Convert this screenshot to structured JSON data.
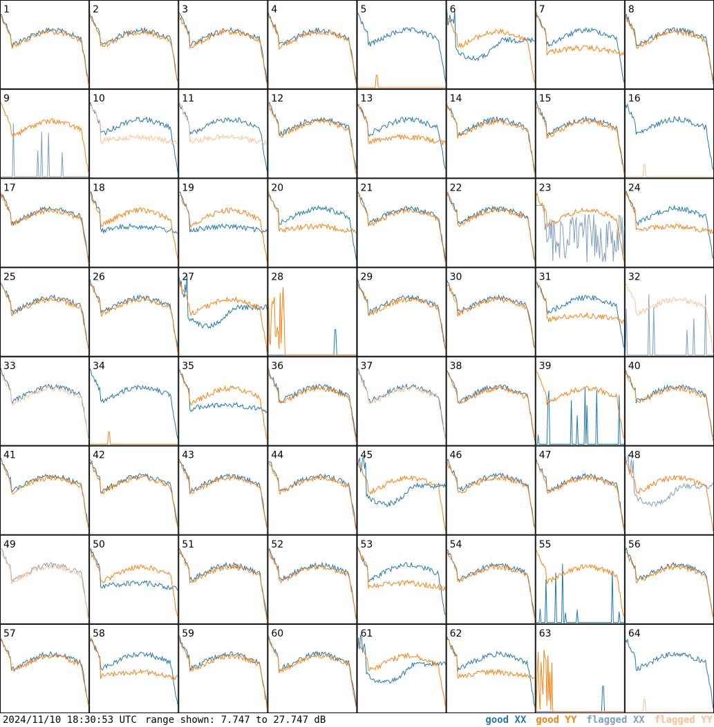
{
  "chart_data": {
    "type": "line",
    "title": "",
    "panel_count": 64,
    "grid_columns": 8,
    "grid_rows": 8,
    "panel_labels": [
      "1",
      "2",
      "3",
      "4",
      "5",
      "6",
      "7",
      "8",
      "9",
      "10",
      "11",
      "12",
      "13",
      "14",
      "15",
      "16",
      "17",
      "18",
      "19",
      "20",
      "21",
      "22",
      "23",
      "24",
      "25",
      "26",
      "27",
      "28",
      "29",
      "30",
      "31",
      "32",
      "33",
      "34",
      "35",
      "36",
      "37",
      "38",
      "39",
      "40",
      "41",
      "42",
      "43",
      "44",
      "45",
      "46",
      "47",
      "48",
      "49",
      "50",
      "51",
      "52",
      "53",
      "54",
      "55",
      "56",
      "57",
      "58",
      "59",
      "60",
      "61",
      "62",
      "63",
      "64"
    ],
    "ylim": [
      7.747,
      27.747
    ],
    "y_units": "dB",
    "series": [
      {
        "name": "good XX",
        "color": "#1f77b4"
      },
      {
        "name": "good YY",
        "color": "#ff7f0e"
      },
      {
        "name": "flagged XX",
        "color": "#7f9fbf"
      },
      {
        "name": "flagged YY",
        "color": "#ffbf8f"
      }
    ],
    "panels": [
      {
        "id": "1",
        "xx": "good",
        "yy": "good",
        "shape": "normal"
      },
      {
        "id": "2",
        "xx": "good",
        "yy": "good",
        "shape": "normal"
      },
      {
        "id": "3",
        "xx": "good",
        "yy": "good",
        "shape": "normal"
      },
      {
        "id": "4",
        "xx": "good",
        "yy": "good",
        "shape": "normal"
      },
      {
        "id": "5",
        "xx": "good",
        "yy": "good",
        "shape": "yy_dead"
      },
      {
        "id": "6",
        "xx": "good",
        "yy": "good",
        "shape": "xx_dip"
      },
      {
        "id": "7",
        "xx": "good",
        "yy": "good",
        "shape": "yy_low"
      },
      {
        "id": "8",
        "xx": "good",
        "yy": "good",
        "shape": "normal"
      },
      {
        "id": "9",
        "xx": "flagged",
        "yy": "good",
        "shape": "xx_dead"
      },
      {
        "id": "10",
        "xx": "good",
        "yy": "flagged",
        "shape": "yy_low"
      },
      {
        "id": "11",
        "xx": "good",
        "yy": "flagged",
        "shape": "yy_low"
      },
      {
        "id": "12",
        "xx": "good",
        "yy": "good",
        "shape": "normal"
      },
      {
        "id": "13",
        "xx": "good",
        "yy": "good",
        "shape": "yy_low"
      },
      {
        "id": "14",
        "xx": "good",
        "yy": "good",
        "shape": "normal"
      },
      {
        "id": "15",
        "xx": "good",
        "yy": "good",
        "shape": "normal"
      },
      {
        "id": "16",
        "xx": "good",
        "yy": "flagged",
        "shape": "yy_dead"
      },
      {
        "id": "17",
        "xx": "good",
        "yy": "good",
        "shape": "normal"
      },
      {
        "id": "18",
        "xx": "good",
        "yy": "good",
        "shape": "xx_low"
      },
      {
        "id": "19",
        "xx": "good",
        "yy": "good",
        "shape": "xx_low"
      },
      {
        "id": "20",
        "xx": "good",
        "yy": "good",
        "shape": "yy_low"
      },
      {
        "id": "21",
        "xx": "good",
        "yy": "good",
        "shape": "normal"
      },
      {
        "id": "22",
        "xx": "good",
        "yy": "good",
        "shape": "normal"
      },
      {
        "id": "23",
        "xx": "flagged",
        "yy": "good",
        "shape": "xx_noise"
      },
      {
        "id": "24",
        "xx": "good",
        "yy": "good",
        "shape": "yy_low"
      },
      {
        "id": "25",
        "xx": "good",
        "yy": "good",
        "shape": "normal"
      },
      {
        "id": "26",
        "xx": "good",
        "yy": "good",
        "shape": "normal"
      },
      {
        "id": "27",
        "xx": "good",
        "yy": "good",
        "shape": "xx_dip"
      },
      {
        "id": "28",
        "xx": "good",
        "yy": "good",
        "shape": "both_dead"
      },
      {
        "id": "29",
        "xx": "good",
        "yy": "good",
        "shape": "normal"
      },
      {
        "id": "30",
        "xx": "good",
        "yy": "good",
        "shape": "normal"
      },
      {
        "id": "31",
        "xx": "good",
        "yy": "good",
        "shape": "yy_low"
      },
      {
        "id": "32",
        "xx": "flagged",
        "yy": "flagged",
        "shape": "xx_dead"
      },
      {
        "id": "33",
        "xx": "good",
        "yy": "flagged",
        "shape": "normal"
      },
      {
        "id": "34",
        "xx": "good",
        "yy": "good",
        "shape": "yy_dead"
      },
      {
        "id": "35",
        "xx": "good",
        "yy": "good",
        "shape": "xx_low"
      },
      {
        "id": "36",
        "xx": "good",
        "yy": "good",
        "shape": "normal"
      },
      {
        "id": "37",
        "xx": "good",
        "yy": "flagged",
        "shape": "normal"
      },
      {
        "id": "38",
        "xx": "good",
        "yy": "good",
        "shape": "normal"
      },
      {
        "id": "39",
        "xx": "good",
        "yy": "good",
        "shape": "xx_dead"
      },
      {
        "id": "40",
        "xx": "good",
        "yy": "good",
        "shape": "normal"
      },
      {
        "id": "41",
        "xx": "good",
        "yy": "good",
        "shape": "normal"
      },
      {
        "id": "42",
        "xx": "good",
        "yy": "good",
        "shape": "normal"
      },
      {
        "id": "43",
        "xx": "good",
        "yy": "good",
        "shape": "normal"
      },
      {
        "id": "44",
        "xx": "good",
        "yy": "good",
        "shape": "normal"
      },
      {
        "id": "45",
        "xx": "good",
        "yy": "good",
        "shape": "xx_dip"
      },
      {
        "id": "46",
        "xx": "good",
        "yy": "good",
        "shape": "normal"
      },
      {
        "id": "47",
        "xx": "good",
        "yy": "good",
        "shape": "normal"
      },
      {
        "id": "48",
        "xx": "flagged",
        "yy": "good",
        "shape": "xx_dip"
      },
      {
        "id": "49",
        "xx": "flagged",
        "yy": "flagged",
        "shape": "normal"
      },
      {
        "id": "50",
        "xx": "good",
        "yy": "good",
        "shape": "xx_low"
      },
      {
        "id": "51",
        "xx": "good",
        "yy": "good",
        "shape": "normal"
      },
      {
        "id": "52",
        "xx": "good",
        "yy": "good",
        "shape": "normal"
      },
      {
        "id": "53",
        "xx": "good",
        "yy": "good",
        "shape": "yy_low"
      },
      {
        "id": "54",
        "xx": "good",
        "yy": "good",
        "shape": "normal"
      },
      {
        "id": "55",
        "xx": "good",
        "yy": "good",
        "shape": "xx_dead"
      },
      {
        "id": "56",
        "xx": "good",
        "yy": "good",
        "shape": "normal"
      },
      {
        "id": "57",
        "xx": "good",
        "yy": "good",
        "shape": "normal"
      },
      {
        "id": "58",
        "xx": "good",
        "yy": "good",
        "shape": "yy_low"
      },
      {
        "id": "59",
        "xx": "good",
        "yy": "good",
        "shape": "normal"
      },
      {
        "id": "60",
        "xx": "good",
        "yy": "good",
        "shape": "normal"
      },
      {
        "id": "61",
        "xx": "good",
        "yy": "good",
        "shape": "xx_dip"
      },
      {
        "id": "62",
        "xx": "good",
        "yy": "good",
        "shape": "yy_low"
      },
      {
        "id": "63",
        "xx": "good",
        "yy": "good",
        "shape": "both_dead"
      },
      {
        "id": "64",
        "xx": "good",
        "yy": "flagged",
        "shape": "yy_dead"
      }
    ]
  },
  "footer": {
    "timestamp": "2024/11/10 18:30:53 UTC",
    "range_text": "range shown: 7.747 to 27.747 dB",
    "legend": [
      {
        "label": "good XX",
        "color": "#1f77b4"
      },
      {
        "label": "good YY",
        "color": "#ff7f0e"
      },
      {
        "label": "flagged XX",
        "color": "#7f9fbf"
      },
      {
        "label": "flagged YY",
        "color": "#ffbf8f"
      }
    ]
  }
}
